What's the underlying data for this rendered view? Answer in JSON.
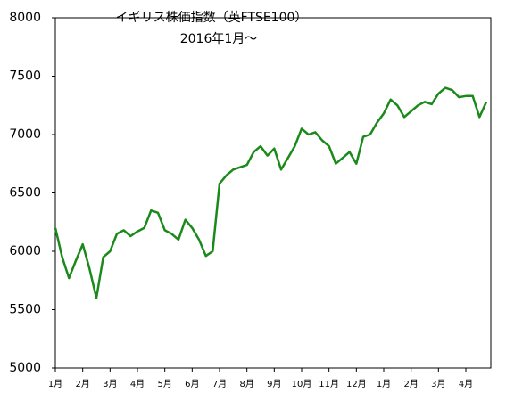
{
  "chart_data": {
    "type": "line",
    "title": "イギリス株価指数（英FTSE100）",
    "subtitle": "2016年1月～",
    "x": [
      "1月",
      null,
      null,
      null,
      "2月",
      null,
      null,
      null,
      "3月",
      null,
      null,
      null,
      "4月",
      null,
      null,
      null,
      "5月",
      null,
      null,
      null,
      "6月",
      null,
      null,
      null,
      "7月",
      null,
      null,
      null,
      "8月",
      null,
      null,
      null,
      "9月",
      null,
      null,
      null,
      "10月",
      null,
      null,
      null,
      "11月",
      null,
      null,
      null,
      "12月",
      null,
      null,
      null,
      "1月",
      null,
      null,
      null,
      "2月",
      null,
      null,
      null,
      "3月",
      null,
      null,
      null,
      "4月",
      null,
      null,
      null
    ],
    "series": [
      {
        "color": "#1b8a1b",
        "values": [
          6200,
          5950,
          5770,
          5920,
          6060,
          5850,
          5600,
          5950,
          6000,
          6150,
          6180,
          6130,
          6170,
          6200,
          6350,
          6330,
          6180,
          6150,
          6100,
          6270,
          6200,
          6100,
          5960,
          6000,
          6580,
          6650,
          6700,
          6720,
          6740,
          6850,
          6900,
          6820,
          6880,
          6700,
          6800,
          6900,
          7050,
          7000,
          7020,
          6950,
          6900,
          6750,
          6800,
          6850,
          6750,
          6980,
          7000,
          7100,
          7180,
          7300,
          7250,
          7150,
          7200,
          7250,
          7280,
          7260,
          7350,
          7400,
          7380,
          7320,
          7330,
          7330,
          7150,
          7280
        ]
      }
    ],
    "ylim": [
      5000,
      8000
    ],
    "yticks": [
      5000,
      5500,
      6000,
      6500,
      7000,
      7500,
      8000
    ]
  }
}
